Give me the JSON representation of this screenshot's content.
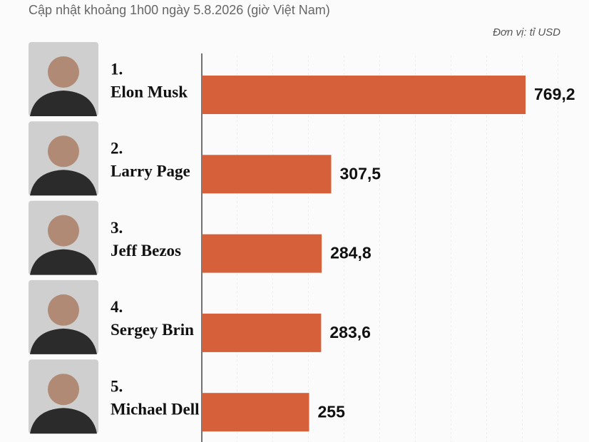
{
  "chart_data": {
    "type": "bar",
    "subtitle": "Cập nhật khoảng 1h00 ngày 5.8.2026 (giờ Việt Nam)",
    "unit_note": "Đơn vị: tỉ USD",
    "ranks": [
      "1.",
      "2.",
      "3.",
      "4.",
      "5."
    ],
    "categories": [
      "Elon Musk",
      "Larry Page",
      "Jeff Bezos",
      "Sergey Brin",
      "Michael Dell"
    ],
    "values": [
      769.2,
      307.5,
      284.8,
      283.6,
      255
    ],
    "value_labels": [
      "769,2",
      "307,5",
      "284,8",
      "283,6",
      "255"
    ],
    "color": "#d5603a",
    "xlim": [
      0,
      920
    ]
  }
}
